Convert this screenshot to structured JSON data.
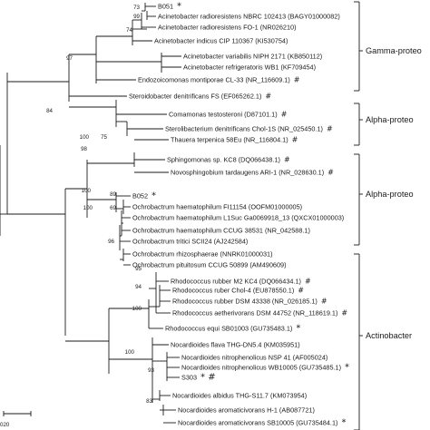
{
  "taxa": [
    {
      "label": "B051",
      "marker": "*"
    },
    {
      "label": "Acinetobacter radioresistens  NBRC 102413 (BAGY01000082)",
      "marker": ""
    },
    {
      "label": "Acinetobacter radioresistens FO-1 (NR026210)",
      "marker": ""
    },
    {
      "label": "Acinetobacter indicus CIP 110367 (KI530754)",
      "marker": ""
    },
    {
      "label": "Acinetobacter variabilis NIPH 2171 (KB850112)",
      "marker": ""
    },
    {
      "label": "Acinetobacter refrigeratoris WB1 (KF709454)",
      "marker": ""
    },
    {
      "label": "Endozoicomonas montiporae CL-33 (NR_116609.1)",
      "marker": "#"
    },
    {
      "label": "Steroidobacter denitrificans FS (EF065262.1)",
      "marker": "#"
    },
    {
      "label": "Comamonas testosteroni (D87101.1)",
      "marker": "#"
    },
    {
      "label": "Sterolibacterium denitrificans Chol-1S (NR_025450.1)",
      "marker": "#"
    },
    {
      "label": "Thauera terpenica 58Eu (NR_116804.1)",
      "marker": "#"
    },
    {
      "label": "Sphingomonas sp. KC8 (DQ066438.1)",
      "marker": "#"
    },
    {
      "label": "Novosphingobium tardaugens ARI-1 (NR_028630.1)",
      "marker": "#"
    },
    {
      "label": "B052",
      "marker": "*"
    },
    {
      "label": "Ochrobactrum haematophilum FI11154 (OOFM01000005)",
      "marker": ""
    },
    {
      "label": "Ochrobactrum haematophilum L1Suc Ga0069918_13 (QXCX01000003)",
      "marker": ""
    },
    {
      "label": "Ochrobactrum haematophilum CCUG 38531 (NR_042588.1)",
      "marker": ""
    },
    {
      "label": "Ochrobactrum tritici SCII24 (AJ242584)",
      "marker": ""
    },
    {
      "label": "Ochrobactrum rhizosphaerae (NNRK01000031)",
      "marker": ""
    },
    {
      "label": "Ochrobactrum pituitosum CCUG 50899 (AM490609)",
      "marker": ""
    },
    {
      "label": "Rhodococcus rubber M2 KC4 (DQ066434.1)",
      "marker": "#"
    },
    {
      "label": "Rhodococcus ruber Chol-4 (EU878550.1)",
      "marker": "#"
    },
    {
      "label": "Rhodococcus rubber DSM 43338 (NR_026185.1)",
      "marker": "#"
    },
    {
      "label": "Rhodococcus aetherivorans DSM 44752 (NR_118619.1)",
      "marker": "#"
    },
    {
      "label": "Rhodococcus equi SB01003 (GU735483.1)",
      "marker": "*"
    },
    {
      "label": "Nocardioides flava THG-DN5.4 (KM035951)",
      "marker": ""
    },
    {
      "label": "Nocardioides nitrophenolicus NSP 41 (AF005024)",
      "marker": ""
    },
    {
      "label": "Nocardioides nitrophenolicus WB10005 (GU735485.1)",
      "marker": "*"
    },
    {
      "label": "S303",
      "marker": "* #"
    },
    {
      "label": "Nocardioides albidus THG-S11.7 (KM073954)",
      "marker": ""
    },
    {
      "label": "Nocardioides aromaticivorans H-1 (AB087721)",
      "marker": ""
    },
    {
      "label": "Nocardioides aromaticivorans SB10005 (GU735484.1)",
      "marker": "*"
    }
  ],
  "bootstrap": [
    "73",
    "99",
    "74",
    "97",
    "84",
    "100",
    "75",
    "98",
    "100",
    "89",
    "69",
    "100",
    "96",
    "95",
    "94",
    "100",
    "100",
    "93",
    "83"
  ],
  "groups": [
    "Gamma-proteo",
    "Alpha-proteo",
    "Alpha-proteo",
    "Actinobacter"
  ],
  "scale_label": "020"
}
